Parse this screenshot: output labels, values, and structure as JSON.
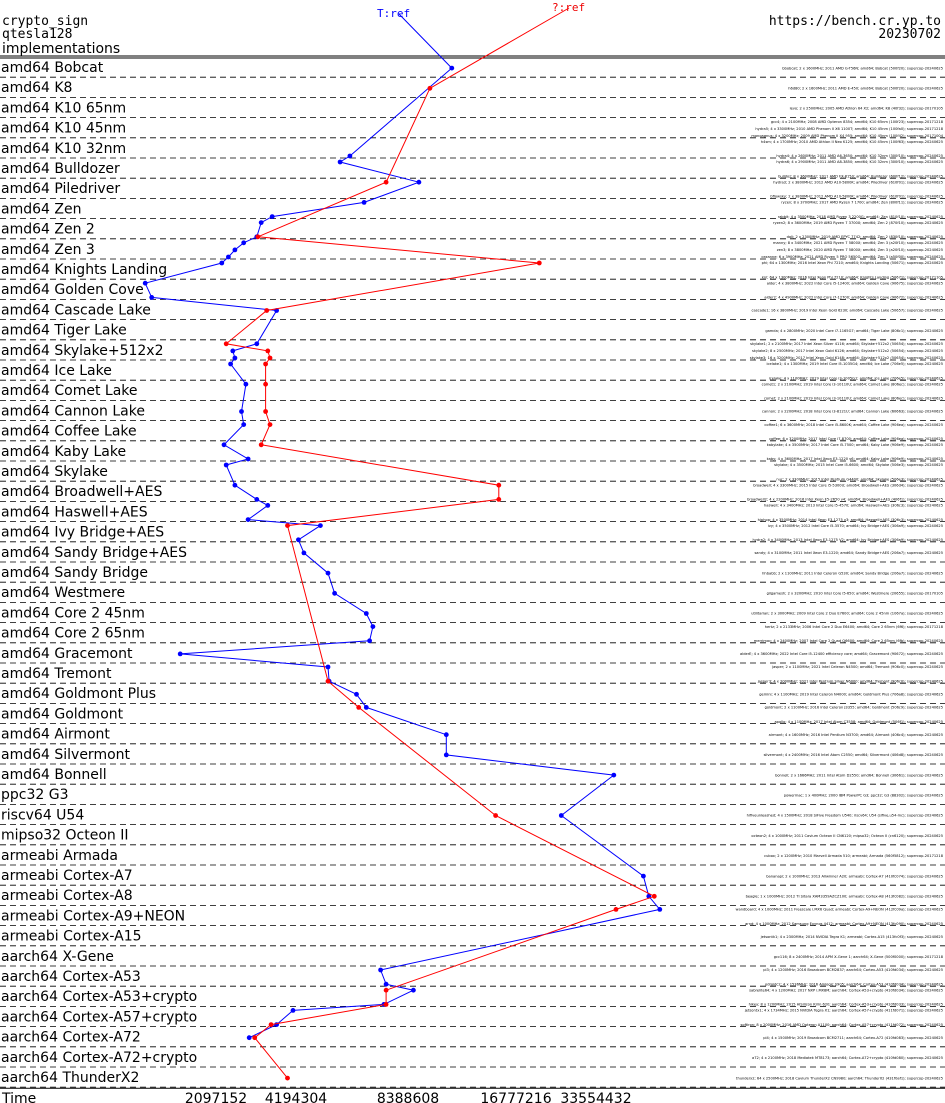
{
  "header": {
    "primitive": "crypto_sign",
    "scheme": "qtesla128",
    "section": "implementations",
    "site": "https://bench.cr.yp.to",
    "date": "20230702"
  },
  "chart_data": {
    "type": "line",
    "xlabel": "Time",
    "x_scale": "log2",
    "x_ticks": [
      "2097152",
      "4194304",
      "8388608",
      "16777216",
      "33554432"
    ],
    "series": [
      {
        "name": "T:ref",
        "color": "#0000ff"
      },
      {
        "name": "?:ref",
        "color": "#ff0000"
      }
    ],
    "rows": [
      {
        "label": "amd64 Bobcat",
        "machines": [
          {
            "t": "bbobcat; 2 x 1600MHz; 2011 AMD G-T56N; amd64; Bobcat (500f20); supercop-20240625",
            "ref": 5.5,
            "q": null
          }
        ]
      },
      {
        "label": "amd64 K8",
        "machines": [
          {
            "t": "h6d80; 2 x 1600MHz; 2011 AMD E-450; amd64; Bobcat (500f20); supercop-20240625",
            "ref": null,
            "q": 5.3
          }
        ]
      },
      {
        "label": "amd64 K10 65nm",
        "machines": [
          {
            "t": "levo; 2 x 2500MHz; 2005 AMD Athlon 64 X2; amd64; K8 (40f32); supercop-20170105",
            "ref": null,
            "q": null
          }
        ]
      },
      {
        "label": "amd64 K10 45nm",
        "machines": [
          {
            "t": "gcc4; 4 x 2100MHz; 2008 AMD Opteron 8354; amd64; K10 65nm (100f23); supercop-20171218",
            "ref": null,
            "q": null
          },
          {
            "t": "hydra5; 4 x 3300MHz; 2010 AMD Phenom II X6 1100T; amd64; K10 45nm (100fa0); supercop-20171218",
            "ref": null,
            "q": null
          },
          {
            "t": "monoagnus; 4 x 3200MHz; 2009 AMD Phenom II X4 955; amd64; K10 45nm (100f42); supercop-20171004",
            "ref": null,
            "q": null
          }
        ]
      },
      {
        "label": "amd64 K10 32nm",
        "machines": [
          {
            "t": "h4sm; 4 x 1700MHz; 2010 AMD Athlon II Neo K125; amd64; K10 45nm (100f63); supercop-20240625",
            "ref": null,
            "q": null
          },
          {
            "t": "hydra4; 4 x 2600MHz; 2011 AMD A6-3650; amd64; K10 32nm (300f10); supercop-20240625",
            "ref": 4.57,
            "q": null
          }
        ]
      },
      {
        "label": "amd64 Bulldozer",
        "machines": [
          {
            "t": "hydra6; 4 x 2900MHz; 2011 AMD A8-3850; amd64; K10 32nm (300f10); supercop-20240625",
            "ref": 4.48,
            "q": null
          },
          {
            "t": "bulldoz; 8 x 3600MHz; 2011 AMD FX-8150; amd64; Bulldozer (600f12); supercop-20240625",
            "ref": null,
            "q": null
          }
        ]
      },
      {
        "label": "amd64 Piledriver",
        "machines": [
          {
            "t": "hydra3; 2 x 3800MHz; 2012 AMD A10-5800K; amd64; Piledriver (610f01); supercop-20240625",
            "ref": 5.2,
            "q": 4.9
          },
          {
            "t": "bflowsky; 2 x 3800MHz; 2012 AMD A10-5800K; amd64; Piledriver (610f01); supercop-20240625",
            "ref": null,
            "q": null
          }
        ]
      },
      {
        "label": "amd64 Zen",
        "machines": [
          {
            "t": "ryzen; 8 x 3700MHz; 2017 AMD Ryzen 7 1700; amd64; Zen (800f11); supercop-20240625",
            "ref": 4.7,
            "q": null
          },
          {
            "t": "rabbit; 4 x 3500MHz; 2018 AMD Ryzen 3 2200G; amd64; Zen (810f10); supercop-20240625",
            "ref": 3.86,
            "q": null
          }
        ]
      },
      {
        "label": "amd64 Zen 2",
        "machines": [
          {
            "t": "ryzen2; 8 x 3600MHz; 2019 AMD Ryzen 7 3700X; amd64; Zen 2 (870f10); supercop-20240625",
            "ref": 3.76,
            "q": null
          },
          {
            "t": "dali; 2 x 2300MHz; 2019 AMD EPYC 7742; amd64; Zen 2 (830f10); supercop-20240625",
            "ref": 3.72,
            "q": 3.73
          }
        ]
      },
      {
        "label": "amd64 Zen 3",
        "machines": [
          {
            "t": "manny; 8 x 3400MHz; 2021 AMD Ryzen 7 5800X; amd64; Zen 3 (a20f10); supercop-20240625",
            "ref": 3.6,
            "q": null
          },
          {
            "t": "zen3; 8 x 3800MHz; 2020 AMD Ryzen 7 5800X; amd64; Zen 3 (a20f10); supercop-20240625",
            "ref": 3.52,
            "q": null
          },
          {
            "t": "cezanne; 6 x 3900MHz; 2021 AMD Ryzen 5 PRO 5650G; amd64; Zen 3 (a50f00); supercop-20240625",
            "ref": 3.46,
            "q": null
          }
        ]
      },
      {
        "label": "amd64 Knights Landing",
        "machines": [
          {
            "t": "phi; 64 x 1300MHz; 2016 Intel Xeon Phi 7210; amd64; Knights Landing (50671); supercop-20240625",
            "ref": 3.4,
            "q": 6.3
          },
          {
            "t": "knl; 64 x 1300MHz; 2016 Intel Xeon Phi 7210; amd64; Knights Landing (50671); supercop-20171105",
            "ref": null,
            "q": null
          }
        ]
      },
      {
        "label": "amd64 Golden Cove",
        "machines": [
          {
            "t": "alder; 4 x 3800MHz; 2022 Intel Core i5-12400; amd64; Golden Cove (90675); supercop-20240625",
            "ref": 2.7,
            "q": null
          },
          {
            "t": "alder2; 4 x 4900MHz; 2022 Intel Core i7-12700; amd64; Golden Cove (90672); supercop-20240625",
            "ref": 2.76,
            "q": null
          }
        ]
      },
      {
        "label": "amd64 Cascade Lake",
        "machines": [
          {
            "t": "cascade1; 16 x 3800MHz; 2019 Intel Xeon Gold 6230; amd64; Cascade Lake (50657); supercop-20240625",
            "ref": 3.9,
            "q": 3.81
          }
        ]
      },
      {
        "label": "amd64 Tiger Lake",
        "machines": [
          {
            "t": "gamda; 4 x 2800MHz; 2020 Intel Core i7-1165G7; amd64; Tiger Lake (806c1); supercop-20240625",
            "ref": null,
            "q": null
          }
        ]
      },
      {
        "label": "amd64 Skylake+512x2",
        "machines": [
          {
            "t": "skylake1; 2 x 2100MHz; 2017 Intel Xeon Silver 4116; amd64; Skylake+512x2 (50654); supercop-20240625",
            "ref": 3.72,
            "q": 3.44
          },
          {
            "t": "skylake2; 8 x 2500MHz; 2017 Intel Xeon Gold 6126; amd64; Skylake+512x2 (50654); supercop-20240625",
            "ref": 3.5,
            "q": 3.82
          },
          {
            "t": "skylake3; 16 x 3200MHz; 2017 Intel Xeon Gold 6148; amd64; Skylake+512x2 (50654); supercop-20240625",
            "ref": 3.52,
            "q": 3.84
          }
        ]
      },
      {
        "label": "amd64 Ice Lake",
        "machines": [
          {
            "t": "icelake1; 4 x 1300MHz; 2019 Intel Core i5-1035G4; amd64; Ice Lake (706e5); supercop-20240625",
            "ref": 3.48,
            "q": 3.8
          },
          {
            "t": "icelake; 4 x 1100MHz; 2019 Intel Core i3-1005G1; amd64; Ice Lake (706e5); supercop-20240625",
            "ref": null,
            "q": null
          }
        ]
      },
      {
        "label": "amd64 Comet Lake",
        "machines": [
          {
            "t": "comet1; 2 x 2100MHz; 2019 Intel Core i3-10110U; amd64; Comet Lake (806ec); supercop-20240625",
            "ref": 3.62,
            "q": 3.8
          },
          {
            "t": "comet; 2 x 2100MHz; 2019 Intel Core i3-10110U; amd64; Comet Lake (806ec); supercop-20240625",
            "ref": null,
            "q": null
          }
        ]
      },
      {
        "label": "amd64 Cannon Lake",
        "machines": [
          {
            "t": "cannon; 2 x 2200MHz; 2018 Intel Core i3-8121U; amd64; Cannon Lake (60663); supercop-20240625",
            "ref": 3.58,
            "q": 3.8
          }
        ]
      },
      {
        "label": "amd64 Coffee Lake",
        "machines": [
          {
            "t": "coffee1; 6 x 3600MHz; 2018 Intel Core i5-8600K; amd64; Coffee Lake (906ea); supercop-20240625",
            "ref": 3.6,
            "q": 3.84
          },
          {
            "t": "coffee; 6 x 3200MHz; 2017 Intel Core i7-8700; amd64; Coffee Lake (906ea); supercop-20240625",
            "ref": null,
            "q": null
          }
        ]
      },
      {
        "label": "amd64 Kaby Lake",
        "machines": [
          {
            "t": "kabylake; 4 x 3500MHz; 2017 Intel Core i5-7500; amd64; Kaby Lake (906e9); supercop-20240625",
            "ref": 3.42,
            "q": 3.76
          },
          {
            "t": "kaby; 4 x 3600MHz; 2017 Intel Xeon E3-1220 v6; amd64; Kaby Lake (906e9); supercop-20240625",
            "ref": 3.64,
            "q": null
          }
        ]
      },
      {
        "label": "amd64 Skylake",
        "machines": [
          {
            "t": "skylake; 4 x 3500MHz; 2015 Intel Core i5-6600; amd64; Skylake (506e3); supercop-20240625",
            "ref": 3.44,
            "q": null
          },
          {
            "t": "nuc; 2 x 3300MHz; 2015 Intel Pentium G4400; amd64; Skylake (506e3); supercop-20240625",
            "ref": null,
            "q": null
          }
        ]
      },
      {
        "label": "amd64 Broadwell+AES",
        "machines": [
          {
            "t": "broadwell; 4 x 3300MHz; 2015 Intel Core i5-5300U; amd64; Broadwell+AES (306d4); supercop-20240625",
            "ref": 3.52,
            "q": 5.93
          },
          {
            "t": "broadwell2; 4 x 2200MHz; 2016 Intel Xeon E5-2650 v4; amd64; Broadwell+AES (406f1); supercop-20240625",
            "ref": 3.72,
            "q": 5.93
          }
        ]
      },
      {
        "label": "amd64 Haswell+AES",
        "machines": [
          {
            "t": "haswell; 4 x 3400MHz; 2013 Intel Core i5-4570; amd64; Haswell+AES (306c3); supercop-20240625",
            "ref": 3.82,
            "q": null
          },
          {
            "t": "hiphop; 4 x 3500MHz; 2014 Intel Xeon E3-1275 v3; amd64; Haswell+AES (306c3); supercop-20240625",
            "ref": 3.64,
            "q": null
          }
        ]
      },
      {
        "label": "amd64 Ivy Bridge+AES",
        "machines": [
          {
            "t": "ivy; 4 x 3500MHz; 2012 Intel Core i5-3570; amd64; Ivy Bridge+AES (306a9); supercop-20240625",
            "ref": 4.3,
            "q": 4.0
          },
          {
            "t": "hydra2; 4 x 3400MHz; 2013 Intel Xeon E3-1275 V2; amd64; Ivy Bridge+AES (306a9); supercop-20240625",
            "ref": 4.1,
            "q": null
          }
        ]
      },
      {
        "label": "amd64 Sandy Bridge+AES",
        "machines": [
          {
            "t": "sandy; 4 x 3100MHz; 2011 Intel Xeon E3-1220; amd64; Sandy Bridge+AES (206a7); supercop-20240625",
            "ref": 4.15,
            "q": null
          }
        ]
      },
      {
        "label": "amd64 Sandy Bridge",
        "machines": [
          {
            "t": "hhbabb; 2 x 1100MHz; 2011 Intel Celeron G530; amd64; Sandy Bridge (206a7); supercop-20240625",
            "ref": 4.37,
            "q": null
          }
        ]
      },
      {
        "label": "amd64 Westmere",
        "machines": [
          {
            "t": "gilgamesh; 2 x 3200MHz; 2010 Intel Core i5-650; amd64; Westmere (20655); supercop-20170105",
            "ref": 4.43,
            "q": null
          }
        ]
      },
      {
        "label": "amd64 Core 2 45nm",
        "machines": [
          {
            "t": "utilitarian; 2 x 3000MHz; 2009 Intel Core 2 Duo E7600; amd64; Core 2 45nm (1067a); supercop-20240625",
            "ref": 4.72,
            "q": null
          }
        ]
      },
      {
        "label": "amd64 Core 2 65nm",
        "machines": [
          {
            "t": "hertz; 2 x 2133MHz; 2006 Intel Core 2 Duo E6400; amd64; Core 2 65nm (6f6); supercop-20171218",
            "ref": 4.78,
            "q": null
          },
          {
            "t": "merrimac; 4 x 2400MHz; 2007 Intel Core 2 Quad Q6600; amd64; Core 2 65nm (6fb); supercop-20240625",
            "ref": 4.75,
            "q": null
          }
        ]
      },
      {
        "label": "amd64 Gracemont",
        "machines": [
          {
            "t": "alderE; 4 x 3600MHz; 2022 Intel Core i5-12400 efficiency core; amd64; Gracemont (90672); supercop-20240625",
            "ref": 3.02,
            "q": null
          }
        ]
      },
      {
        "label": "amd64 Tremont",
        "machines": [
          {
            "t": "jasper; 2 x 1100MHz; 2021 Intel Celeron N4500; amd64; Tremont (906c0); supercop-20240625",
            "ref": 4.37,
            "q": null
          },
          {
            "t": "jasper3; 4 x 2000MHz; 2021 Intel Pentium Silver N6000; amd64; Tremont (906c0); supercop-20240625",
            "ref": 4.38,
            "q": 4.37
          }
        ]
      },
      {
        "label": "amd64 Goldmont Plus",
        "machines": [
          {
            "t": "gemini; 4 x 1100MHz; 2019 Intel Celeron N4000; amd64; Goldmont Plus (706a8); supercop-20240625",
            "ref": 4.63,
            "q": null
          }
        ]
      },
      {
        "label": "amd64 Goldmont",
        "machines": [
          {
            "t": "goldmont; 2 x 1100MHz; 2016 Intel Celeron J3355; amd64; Goldmont (506c9); supercop-20240625",
            "ref": 4.72,
            "q": 4.65
          },
          {
            "t": "apollo; 4 x 1100MHz; 2017 Intel Atom C3558; amd64; Goldmont (506f1); supercop-20240625",
            "ref": null,
            "q": null
          }
        ]
      },
      {
        "label": "amd64 Airmont",
        "machines": [
          {
            "t": "airmont; 4 x 1600MHz; 2016 Intel Pentium N3700; amd64; Airmont (406c4); supercop-20240625",
            "ref": 5.45,
            "q": null
          }
        ]
      },
      {
        "label": "amd64 Silvermont",
        "machines": [
          {
            "t": "silvermont; 4 x 2400MHz; 2016 Intel Atom C2550; amd64; Silvermont (406d8); supercop-20240625",
            "ref": 5.45,
            "q": null
          }
        ]
      },
      {
        "label": "amd64 Bonnell",
        "machines": [
          {
            "t": "bonnell; 2 x 1666MHz; 2011 Intel Atom D2550; amd64; Bonnell (30661); supercop-20240625",
            "ref": 6.98,
            "q": null
          }
        ]
      },
      {
        "label": "ppc32 G3",
        "machines": [
          {
            "t": "powermac; 1 x 400MHz; 2000 IBM PowerPC G3; ppc32; G3 (88302); supercop-20240625",
            "ref": null,
            "q": null
          }
        ]
      },
      {
        "label": "riscv64 U54",
        "machines": [
          {
            "t": "hifiveunleashed; 4 x 1500MHz; 2018 SiFive Freedom U540; riscv64; U54 (sifive,u54-mc); supercop-20240625",
            "ref": 6.5,
            "q": 5.9
          }
        ]
      },
      {
        "label": "mipso32 Octeon II",
        "machines": [
          {
            "t": "octeon2; 4 x 1000MHz; 2011 Cavium Octeon II CN6120; mipso32; Octeon II (cn6120); supercop-20240625",
            "ref": null,
            "q": null
          }
        ]
      },
      {
        "label": "armeabi Armada",
        "machines": [
          {
            "t": "cubox; 2 x 1200MHz; 2010 Marvell Armada 510; armeabi; Armada (560f5812); supercop-20171218",
            "ref": null,
            "q": null
          }
        ]
      },
      {
        "label": "armeabi Cortex-A7",
        "machines": [
          {
            "t": "bananapi; 2 x 1000MHz; 2013 Allwinner A20; armeabi; Cortex-A7 (410fc074); supercop-20240625",
            "ref": 7.25,
            "q": null
          }
        ]
      },
      {
        "label": "armeabi Cortex-A8",
        "machines": [
          {
            "t": "beagle; 1 x 1000MHz; 2012 TI Sitara XAM3359AZCZ100; armeabi; Cortex-A8 (413fc082); supercop-20240625",
            "ref": 7.3,
            "q": 7.35
          }
        ]
      },
      {
        "label": "armeabi Cortex-A9+NEON",
        "machines": [
          {
            "t": "wandboard; 4 x 1000MHz; 2011 Freescale i.MX6 Quad; armeabi; Cortex-A9+NEON (412fc09a); supercop-20240625",
            "ref": 7.4,
            "q": 7.0
          },
          {
            "t": "arnd; 4 x 1000MHz; 2012 Samsung Exynos 4412; armeabi; Cortex-A9+NEON (413fc090); supercop-20240625",
            "ref": null,
            "q": null
          }
        ]
      },
      {
        "label": "armeabi Cortex-A15",
        "machines": [
          {
            "t": "jetsontk1; 4 x 2300MHz; 2014 NVIDIA Tegra K1; armeabi; Cortex-A15 (413fc0f3); supercop-20240625",
            "ref": null,
            "q": null
          }
        ]
      },
      {
        "label": "aarch64 X-Gene",
        "machines": [
          {
            "t": "gcc116; 8 x 2400MHz; 2014 APM X-Gene 1; aarch64; X-Gene (500f0000); supercop-20171218",
            "ref": null,
            "q": null
          }
        ]
      },
      {
        "label": "aarch64 Cortex-A53",
        "machines": [
          {
            "t": "pi3; 4 x 1200MHz; 2016 Broadcom BCM2837; aarch64; Cortex-A53 (410fd034); supercop-20240625",
            "ref": 4.85,
            "q": null
          },
          {
            "t": "odroidc2; 4 x 1536MHz; 2016 Amlogic S905; aarch64; Cortex-A53 (410fd034); supercop-20240625",
            "ref": 4.9,
            "q": null
          }
        ]
      },
      {
        "label": "aarch64 Cortex-A53+crypto",
        "machines": [
          {
            "t": "sabrelite64; 4 x 1200MHz; 2017 NXP i.MX8M; aarch64; Cortex-A53+crypto (410fd034); supercop-20240625",
            "ref": 5.15,
            "q": 4.9
          },
          {
            "t": "hikey; 8 x 1200MHz; 2015 HiSilicon Kirin 620; aarch64; Cortex-A53+crypto (410fd033); supercop-20240625",
            "ref": 4.88,
            "q": 4.9
          }
        ]
      },
      {
        "label": "aarch64 Cortex-A57+crypto",
        "machines": [
          {
            "t": "jetsontx1; 4 x 1734MHz; 2015 NVIDIA Tegra X1; aarch64; Cortex-A57+crypto (411fd071); supercop-20240625",
            "ref": 4.05,
            "q": null
          },
          {
            "t": "softiron; 8 x 2000MHz; 2016 AMD Opteron A1100; aarch64; Cortex-A57+crypto (411fd072); supercop-20240625",
            "ref": 3.9,
            "q": 3.85
          }
        ]
      },
      {
        "label": "aarch64 Cortex-A72",
        "machines": [
          {
            "t": "pi4; 4 x 1500MHz; 2019 Broadcom BCM2711; aarch64; Cortex-A72 (410fd083); supercop-20240625",
            "ref": 3.65,
            "q": 3.7
          }
        ]
      },
      {
        "label": "aarch64 Cortex-A72+crypto",
        "machines": [
          {
            "t": "a72; 4 x 2100MHz; 2018 Mediatek MT8173; aarch64; Cortex-A72+crypto (410fd080); supercop-20240625",
            "ref": null,
            "q": null
          }
        ]
      },
      {
        "label": "aarch64 ThunderX2",
        "machines": [
          {
            "t": "thunderx2; 64 x 2500MHz; 2018 Cavium ThunderX2 CN9980; aarch64; ThunderX2 (431f0af1); supercop-20240625",
            "ref": null,
            "q": 4.0
          }
        ]
      }
    ]
  }
}
